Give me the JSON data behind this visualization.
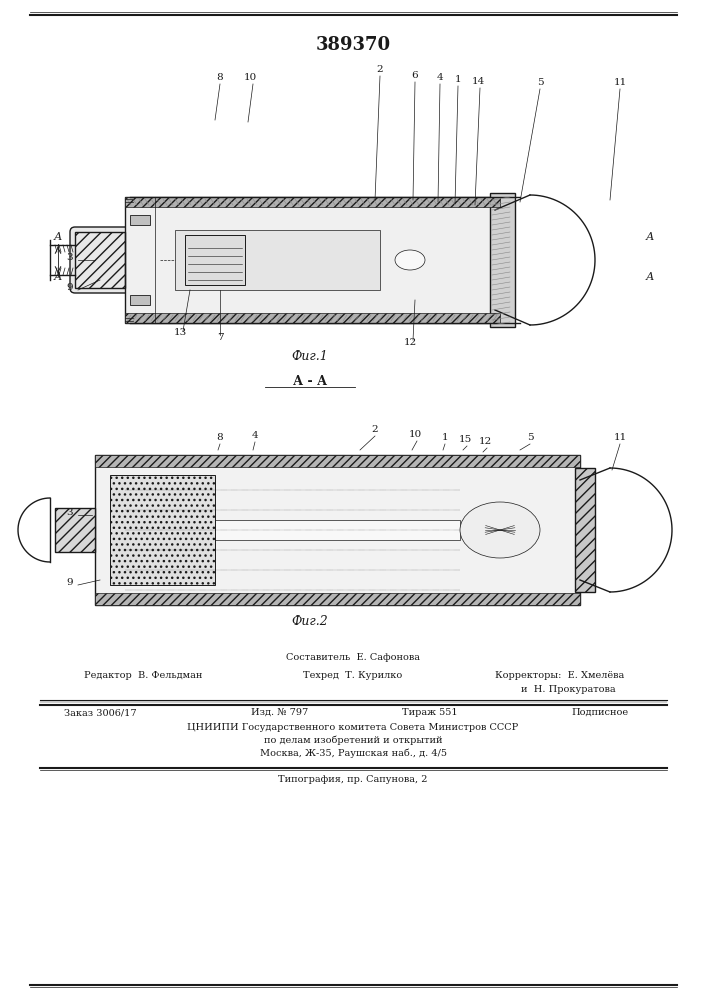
{
  "patent_number": "389370",
  "fig1_label": "Фиг.1",
  "fig2_label": "Фиг.2",
  "section_label": "А - А",
  "bg_color": "#ffffff",
  "line_color": "#1a1a1a",
  "hatch_color": "#444444",
  "title_fontsize": 13,
  "label_fontsize": 8,
  "footer_top_line1": "Составитель  Е. Сафонова",
  "footer_top_line2_left": "Редактор  В. Фельдман",
  "footer_top_line2_mid": "Техред  Т. Курилко",
  "footer_top_line2_right": "Корректоры:  Е. Хмелёва",
  "footer_top_line3_right": "и  Н. Прокуратова",
  "footer_bot_line1_left": "Заказ 3006/17",
  "footer_bot_line1_mid": "Изд. № 797",
  "footer_bot_line1_mid2": "Тираж 551",
  "footer_bot_line1_right": "Подписное",
  "footer_bot_line2": "ЦНИИПИ Государственного комитета Совета Министров СССР",
  "footer_bot_line3": "по делам изобретений и открытий",
  "footer_bot_line4": "Москва, Ж-35, Раушская наб., д. 4/5",
  "footer_bot_last": "Типография, пр. Сапунова, 2"
}
